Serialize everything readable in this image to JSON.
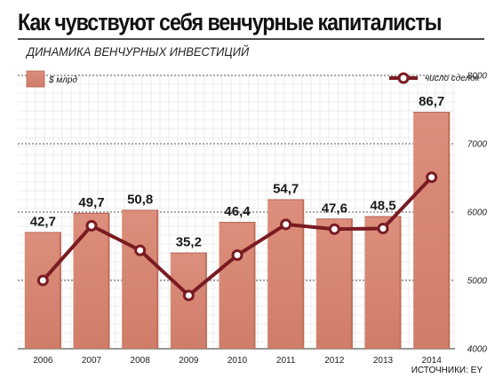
{
  "title": "Как чувствуют себя венчурные капиталисты",
  "subtitle": "ДИНАМИКА ВЕНЧУРНЫХ ИНВЕСТИЦИЙ",
  "source": "ИСТОЧНИКИ: EY",
  "chart_data": {
    "type": "bar",
    "categories": [
      "2006",
      "2007",
      "2008",
      "2009",
      "2010",
      "2011",
      "2012",
      "2013",
      "2014"
    ],
    "series": [
      {
        "name": "$ млрд",
        "type": "bar",
        "axis": "hidden-left",
        "values": [
          42.7,
          49.7,
          50.8,
          35.2,
          46.4,
          54.7,
          47.6,
          48.5,
          86.7
        ],
        "labels": [
          "42,7",
          "49,7",
          "50,8",
          "35,2",
          "46,4",
          "54,7",
          "47,6",
          "48,5",
          "86,7"
        ],
        "color": "#d98b78"
      },
      {
        "name": "число сделок",
        "type": "line",
        "axis": "right",
        "values": [
          5000,
          5800,
          5440,
          4780,
          5370,
          5820,
          5750,
          5760,
          6510
        ],
        "color": "#7a1b22"
      }
    ],
    "right_axis": {
      "ticks": [
        "4000",
        "5000",
        "6000",
        "7000",
        "8000"
      ],
      "ylim": [
        4000,
        8000
      ]
    },
    "bar_ylim": [
      0,
      100
    ],
    "grid": true,
    "legend": [
      "top-left",
      "top-right"
    ]
  }
}
